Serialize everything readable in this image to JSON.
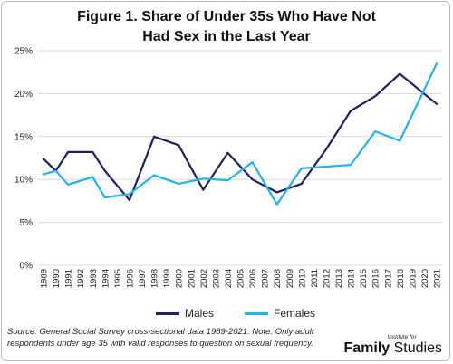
{
  "title_line1": "Figure 1. Share of Under 35s Who Have Not",
  "title_line2": "Had Sex in the Last Year",
  "source_text": "Source: General Social Survey cross-sectional data 1989-2021. Note: Only adult respondents under age 35 with valid responses to question on sexual frequency.",
  "logo": {
    "small": "Institute for",
    "bold": "Family",
    "regular": " Studies"
  },
  "colors": {
    "males": "#1f1f66",
    "females": "#1fb4f0",
    "grid": "#d9d9d9"
  },
  "chart_data": {
    "type": "line",
    "title": "Figure 1. Share of Under 35s Who Have Not Had Sex in the Last Year",
    "xlabel": "",
    "ylabel": "",
    "ylim": [
      0,
      25
    ],
    "yticks": [
      "0%",
      "5%",
      "10%",
      "15%",
      "20%",
      "25%"
    ],
    "grid": true,
    "legend_position": "bottom",
    "categories": [
      "1989",
      "1990",
      "1991",
      "1992",
      "1993",
      "1994",
      "1996",
      "1998",
      "2000",
      "2002",
      "2004",
      "2006",
      "2008",
      "2010",
      "2012",
      "2014",
      "2016",
      "2018",
      "2021"
    ],
    "x_labels": [
      "1989",
      "1990",
      "1991",
      "1992",
      "1993",
      "1994",
      "1995",
      "1996",
      "1997",
      "1998",
      "1999",
      "2000",
      "2001",
      "2002",
      "2003",
      "2004",
      "2005",
      "2006",
      "2007",
      "2008",
      "2009",
      "2010",
      "2011",
      "2012",
      "2013",
      "2014",
      "2015",
      "2016",
      "2017",
      "2018",
      "2019",
      "2020",
      "2021"
    ],
    "series": [
      {
        "name": "Males",
        "x": [
          1989,
          1990,
          1991,
          1993,
          1994,
          1996,
          1998,
          2000,
          2002,
          2004,
          2006,
          2008,
          2010,
          2012,
          2014,
          2016,
          2018,
          2021
        ],
        "values": [
          12.4,
          11.0,
          13.2,
          13.2,
          11.0,
          7.6,
          15.0,
          14.0,
          8.8,
          13.1,
          10.0,
          8.5,
          9.5,
          13.5,
          18.0,
          19.7,
          22.3,
          18.8
        ]
      },
      {
        "name": "Females",
        "x": [
          1989,
          1990,
          1991,
          1993,
          1994,
          1996,
          1998,
          2000,
          2002,
          2004,
          2006,
          2008,
          2010,
          2012,
          2014,
          2016,
          2018,
          2021
        ],
        "values": [
          10.6,
          11.0,
          9.4,
          10.3,
          7.9,
          8.3,
          10.5,
          9.5,
          10.1,
          9.9,
          12.0,
          7.1,
          11.3,
          11.5,
          11.7,
          15.6,
          14.5,
          23.5
        ]
      }
    ]
  }
}
